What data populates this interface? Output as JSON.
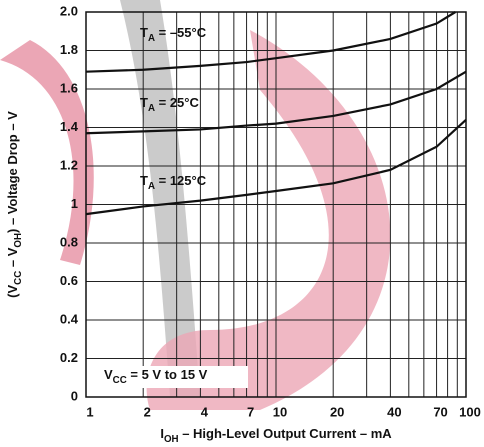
{
  "chart_data": {
    "type": "line",
    "xlabel": [
      "I",
      "OH",
      " – High-Level Output Current – mA"
    ],
    "ylabel": [
      "(V",
      "CC",
      " – V",
      "OH",
      ") – Voltage Drop – V"
    ],
    "annotation": [
      "V",
      "CC",
      " = 5 V to 15 V"
    ],
    "xlim": [
      1,
      100
    ],
    "ylim": [
      0,
      2
    ],
    "xscale": "log",
    "grid": true,
    "xticks": [
      1,
      2,
      4,
      7,
      10,
      20,
      40,
      70,
      100
    ],
    "xminor": [
      3,
      5,
      6,
      8,
      9,
      30,
      50,
      60,
      80,
      90
    ],
    "yticks": [
      0,
      0.2,
      0.4,
      0.6,
      0.8,
      1,
      1.2,
      1.4,
      1.6,
      1.8,
      {
        "value": 2,
        "label": "2.0"
      }
    ],
    "series": [
      {
        "label": [
          "T",
          "A",
          " = –55°C"
        ],
        "color": "#111111",
        "x": [
          1,
          2,
          4,
          7,
          10,
          20,
          40,
          70,
          88
        ],
        "values": [
          1.69,
          1.7,
          1.72,
          1.74,
          1.76,
          1.8,
          1.86,
          1.94,
          2.0
        ]
      },
      {
        "label": [
          "T",
          "A",
          " = 25°C"
        ],
        "color": "#111111",
        "x": [
          1,
          2,
          4,
          7,
          10,
          20,
          40,
          70,
          100
        ],
        "values": [
          1.37,
          1.38,
          1.39,
          1.41,
          1.42,
          1.46,
          1.52,
          1.6,
          1.69
        ]
      },
      {
        "label": [
          "T",
          "A",
          " = 125°C"
        ],
        "color": "#111111",
        "x": [
          1,
          2,
          4,
          7,
          10,
          20,
          40,
          70,
          100
        ],
        "values": [
          0.95,
          0.99,
          1.02,
          1.05,
          1.07,
          1.11,
          1.18,
          1.3,
          1.44
        ]
      }
    ]
  }
}
